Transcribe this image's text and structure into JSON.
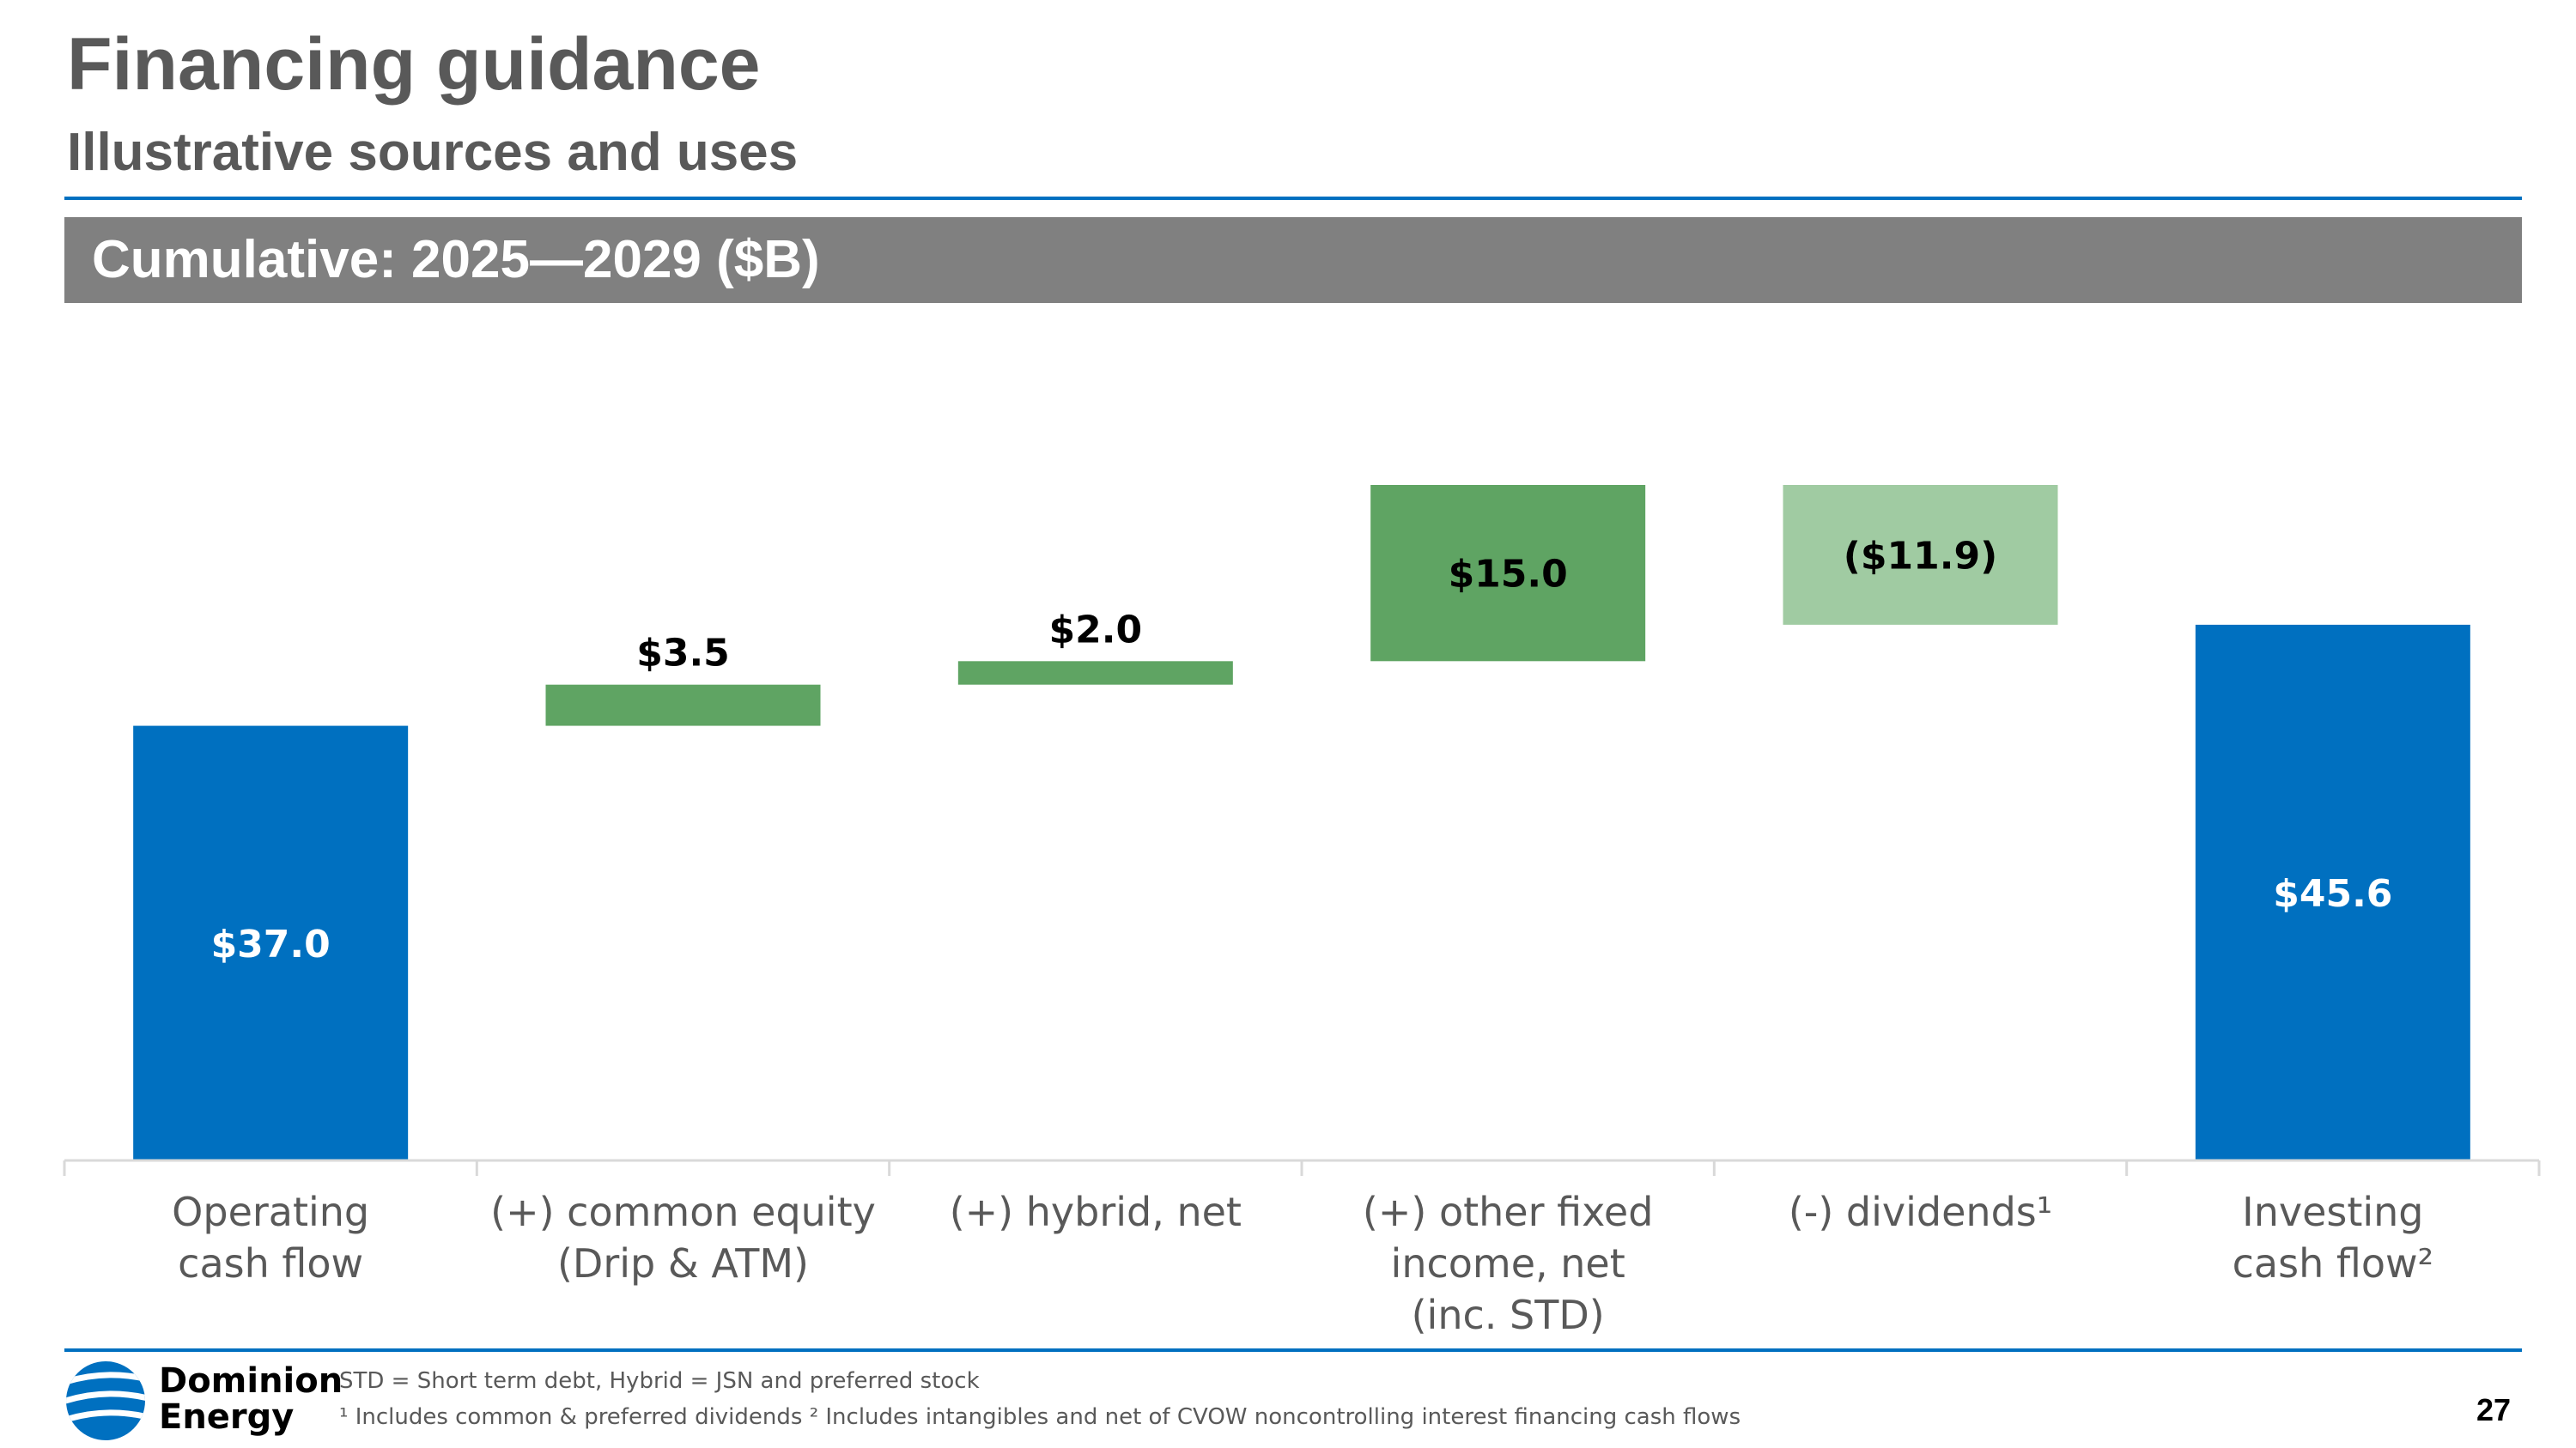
{
  "header": {
    "title": "Financing guidance",
    "subtitle": "Illustrative sources and uses"
  },
  "banner": {
    "text": "Cumulative: 2025—2029 ($B)"
  },
  "chart_data": {
    "type": "bar",
    "waterfall": true,
    "categories": [
      "Operating\ncash flow",
      "(+) common equity\n(Drip & ATM)",
      "(+) hybrid, net",
      "(+) other fixed\nincome, net\n(inc. STD)",
      "(-) dividends¹",
      "Investing\ncash flow²"
    ],
    "values": [
      37.0,
      3.5,
      2.0,
      15.0,
      -11.9,
      45.6
    ],
    "kinds": [
      "total",
      "increase",
      "increase",
      "increase",
      "decrease",
      "total"
    ],
    "data_labels": [
      "$37.0",
      "$3.5",
      "$2.0",
      "$15.0",
      "($11.9)",
      "$45.6"
    ],
    "colors": {
      "total": "#0070C0",
      "increase": "#5FA463",
      "decrease": "#A0CBA2"
    },
    "ylim": [
      0,
      60
    ],
    "grid": false,
    "legend": "none"
  },
  "footer": {
    "logo_line1": "Dominion",
    "logo_line2": "Energy",
    "footnote1": "STD = Short term debt, Hybrid = JSN and preferred stock",
    "footnote2": "¹ Includes common & preferred dividends ² Includes intangibles and net of CVOW noncontrolling interest financing cash flows",
    "page_number": "27"
  }
}
